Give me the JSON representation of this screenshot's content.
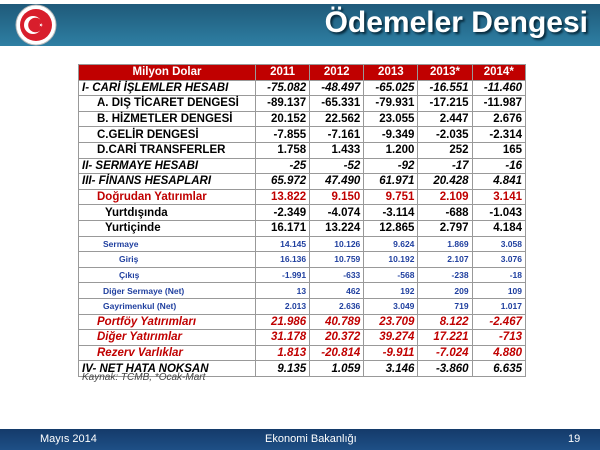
{
  "header": {
    "title": "Ödemeler Dengesi"
  },
  "table": {
    "columns": [
      "Milyon Dolar",
      "2011",
      "2012",
      "2013",
      "2013*",
      "2014*"
    ],
    "rows": [
      [
        "I- CARİ İŞLEMLER HESABI",
        "-75.082",
        "-48.497",
        "-65.025",
        "-16.551",
        "-11.460"
      ],
      [
        "A. DIŞ TİCARET DENGESİ",
        "-89.137",
        "-65.331",
        "-79.931",
        "-17.215",
        "-11.987"
      ],
      [
        "B. HİZMETLER DENGESİ",
        "20.152",
        "22.562",
        "23.055",
        "2.447",
        "2.676"
      ],
      [
        "C.GELİR DENGESİ",
        "-7.855",
        "-7.161",
        "-9.349",
        "-2.035",
        "-2.314"
      ],
      [
        "D.CARİ TRANSFERLER",
        "1.758",
        "1.433",
        "1.200",
        "252",
        "165"
      ],
      [
        "II- SERMAYE HESABI",
        "-25",
        "-52",
        "-92",
        "-17",
        "-16"
      ],
      [
        "III- FİNANS HESAPLARI",
        "65.972",
        "47.490",
        "61.971",
        "20.428",
        "4.841"
      ],
      [
        "Doğrudan Yatırımlar",
        "13.822",
        "9.150",
        "9.751",
        "2.109",
        "3.141"
      ],
      [
        "Yurtdışında",
        "-2.349",
        "-4.074",
        "-3.114",
        "-688",
        "-1.043"
      ],
      [
        "Yurtiçinde",
        "16.171",
        "13.224",
        "12.865",
        "2.797",
        "4.184"
      ],
      [
        "Sermaye",
        "14.145",
        "10.126",
        "9.624",
        "1.869",
        "3.058"
      ],
      [
        "Giriş",
        "16.136",
        "10.759",
        "10.192",
        "2.107",
        "3.076"
      ],
      [
        "Çıkış",
        "-1.991",
        "-633",
        "-568",
        "-238",
        "-18"
      ],
      [
        "Diğer Sermaye (Net)",
        "13",
        "462",
        "192",
        "209",
        "109"
      ],
      [
        "Gayrimenkul (Net)",
        "2.013",
        "2.636",
        "3.049",
        "719",
        "1.017"
      ],
      [
        "Portföy Yatırımları",
        "21.986",
        "40.789",
        "23.709",
        "8.122",
        "-2.467"
      ],
      [
        "Diğer Yatırımlar",
        "31.178",
        "20.372",
        "39.274",
        "17.221",
        "-713"
      ],
      [
        "Rezerv Varlıklar",
        "1.813",
        "-20.814",
        "-9.911",
        "-7.024",
        "4.880"
      ],
      [
        "IV- NET HATA NOKSAN",
        "9.135",
        "1.059",
        "3.146",
        "-3.860",
        "6.635"
      ]
    ]
  },
  "source": "Kaynak: TCMB, *Ocak-Mart",
  "footer": {
    "date": "Mayıs 2014",
    "ministry": "Ekonomi Bakanlığı",
    "page": "19"
  }
}
